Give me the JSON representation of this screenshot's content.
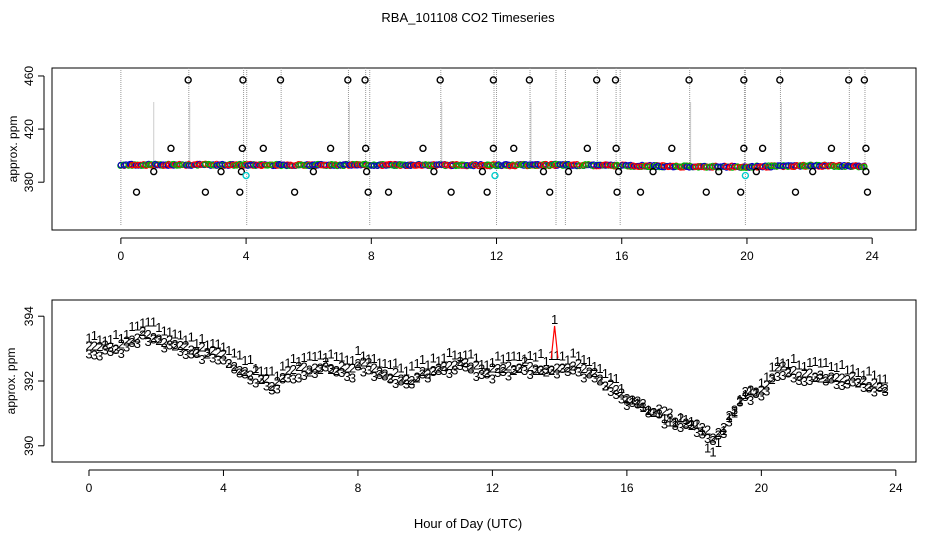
{
  "chart_data": {
    "title": "RBA_101108  CO2 Timeseries",
    "xlabel": "Hour of Day (UTC)",
    "colors": {
      "series1": "#ff0000",
      "series2": "#00bb00",
      "series3": "#0000cc",
      "outlier": "#000000",
      "cyan": "#00cccc",
      "vline": "#999999",
      "axis": "#000000"
    },
    "panels": [
      {
        "type": "scatter",
        "ylabel": "approx. ppm",
        "xlim": [
          -2.2,
          25.4
        ],
        "ylim": [
          344,
          466
        ],
        "xticks": [
          0,
          4,
          8,
          12,
          16,
          20,
          24
        ],
        "yticks": [
          380,
          420,
          460
        ],
        "baseline_knots": [
          [
            0,
            393
          ],
          [
            2,
            393.2
          ],
          [
            4,
            393
          ],
          [
            8,
            393
          ],
          [
            12,
            392.8
          ],
          [
            14,
            393
          ],
          [
            16,
            392.5
          ],
          [
            18,
            391.8
          ],
          [
            20,
            391.5
          ],
          [
            22,
            392.5
          ],
          [
            23.8,
            392
          ]
        ],
        "outliers_high_457": [
          2.15,
          3.9,
          5.1,
          7.25,
          7.8,
          10.2,
          11.9,
          13.05,
          15.2,
          15.8,
          18.15,
          19.9,
          21.05,
          23.25,
          23.75
        ],
        "outliers_mid_405": [
          1.6,
          3.88,
          4.55,
          6.7,
          7.82,
          9.65,
          11.9,
          12.55,
          14.9,
          15.82,
          17.6,
          19.9,
          20.5,
          22.7,
          23.8
        ],
        "outliers_low_372": [
          0.5,
          2.7,
          3.8,
          5.55,
          7.9,
          8.55,
          10.55,
          11.7,
          13.7,
          15.85,
          16.6,
          18.7,
          19.8,
          21.55,
          23.85
        ],
        "outliers_near_388": [
          1.05,
          3.2,
          3.85,
          6.15,
          7.85,
          10.0,
          11.55,
          13.5,
          14.3,
          15.9,
          17.0,
          19.1,
          20.3,
          22.1,
          23.8
        ],
        "cyan_points": [
          [
            4.0,
            385
          ],
          [
            11.95,
            385
          ],
          [
            19.95,
            385
          ]
        ]
      },
      {
        "type": "scatter",
        "ylabel": "approx. ppm",
        "xlim": [
          -1.1,
          24.6
        ],
        "ylim": [
          389.5,
          394.5
        ],
        "xticks": [
          0,
          4,
          8,
          12,
          16,
          20,
          24
        ],
        "yticks": [
          390,
          392,
          394
        ],
        "series": [
          {
            "name": "1",
            "label": "1",
            "offset": 0.3
          },
          {
            "name": "2",
            "label": "2",
            "offset": 0.0
          },
          {
            "name": "3",
            "label": "3",
            "offset": -0.15
          }
        ],
        "knots": [
          [
            0,
            393.0
          ],
          [
            1,
            393.1
          ],
          [
            1.5,
            393.5
          ],
          [
            2,
            393.4
          ],
          [
            3,
            393.0
          ],
          [
            3.8,
            392.9
          ],
          [
            4.2,
            392.6
          ],
          [
            5,
            392.2
          ],
          [
            5.5,
            391.9
          ],
          [
            6,
            392.3
          ],
          [
            7,
            392.5
          ],
          [
            7.8,
            392.3
          ],
          [
            8,
            392.6
          ],
          [
            9,
            392.2
          ],
          [
            9.5,
            392.1
          ],
          [
            10,
            392.3
          ],
          [
            11,
            392.6
          ],
          [
            11.8,
            392.3
          ],
          [
            12.3,
            392.4
          ],
          [
            13,
            392.5
          ],
          [
            13.7,
            392.4
          ],
          [
            14.5,
            392.5
          ],
          [
            15,
            392.2
          ],
          [
            15.8,
            391.6
          ],
          [
            16.5,
            391.3
          ],
          [
            17,
            391.0
          ],
          [
            18,
            390.7
          ],
          [
            18.6,
            390.3
          ],
          [
            19,
            390.8
          ],
          [
            19.4,
            391.6
          ],
          [
            20,
            391.7
          ],
          [
            20.5,
            392.4
          ],
          [
            21,
            392.3
          ],
          [
            22,
            392.2
          ],
          [
            22.5,
            392.1
          ],
          [
            23,
            392.0
          ],
          [
            23.7,
            391.8
          ]
        ],
        "spikes": [
          {
            "x": 13.85,
            "y": 393.7
          }
        ]
      }
    ]
  }
}
